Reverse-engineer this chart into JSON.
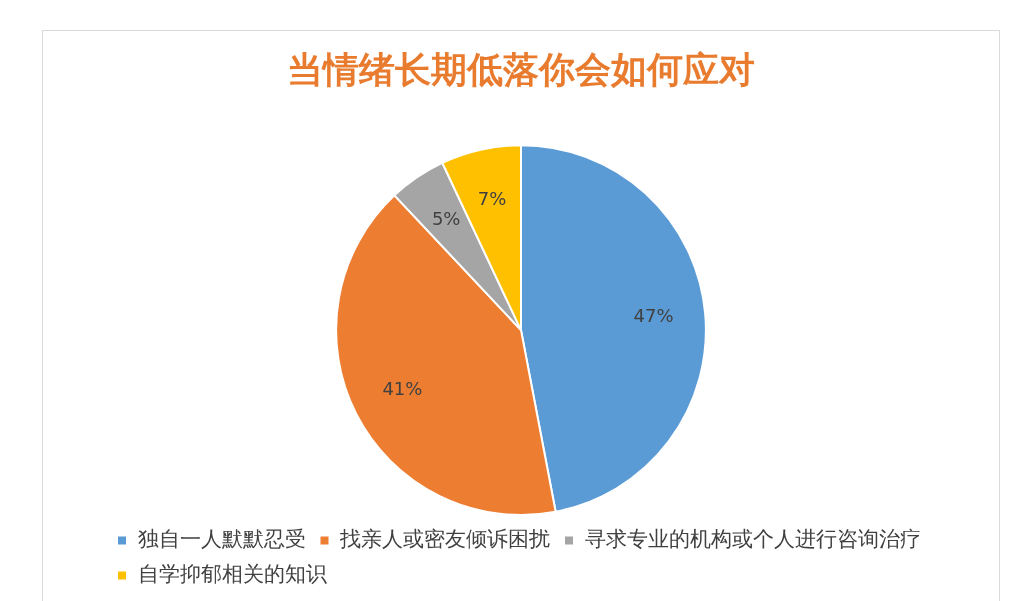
{
  "chart_data": {
    "type": "pie",
    "title": "当情绪长期低落你会如何应对",
    "categories": [
      "独自一人默默忍受",
      "找亲人或密友倾诉困扰",
      "寻求专业的机构或个人进行咨询治疗",
      "自学抑郁相关的知识"
    ],
    "values": [
      47,
      41,
      5,
      7
    ],
    "colors": [
      "#5b9bd5",
      "#ed7d31",
      "#a5a5a5",
      "#ffc000"
    ],
    "value_labels": [
      "47%",
      "41%",
      "5%",
      "7%"
    ],
    "legend": "bottom"
  }
}
